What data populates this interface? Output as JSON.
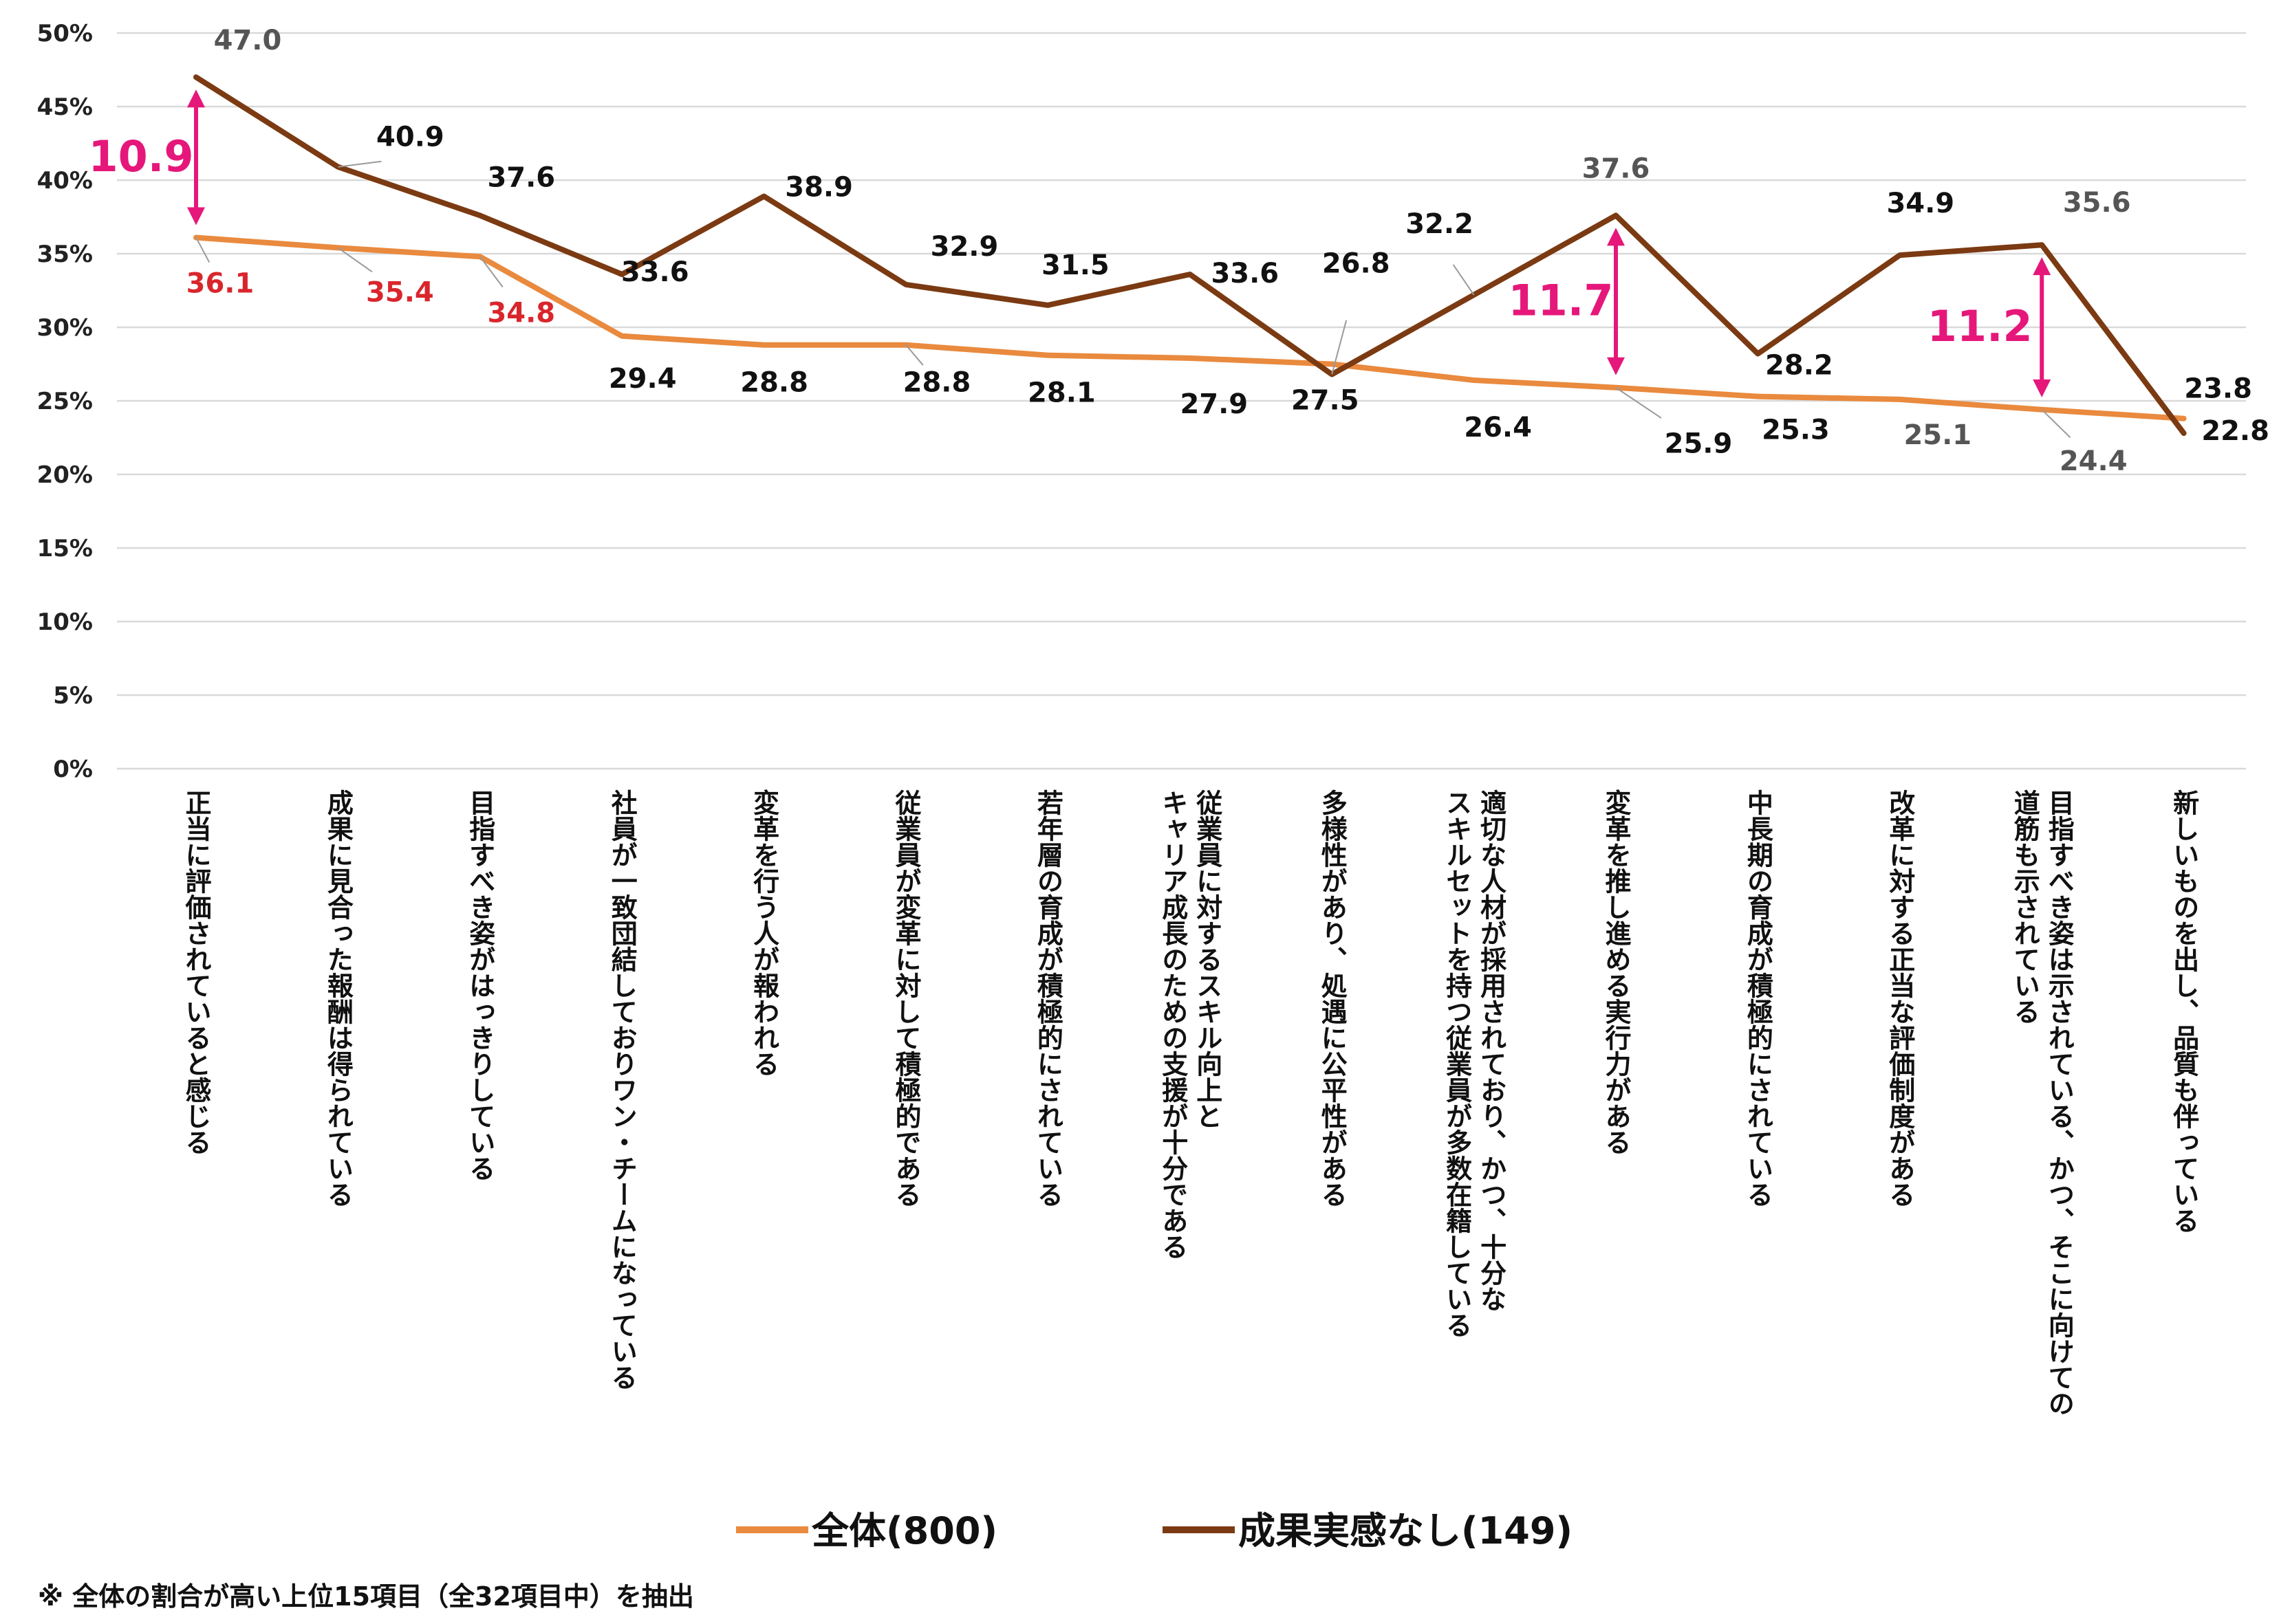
{
  "chart_data": {
    "type": "line",
    "categories": [
      "正当に評価されていると感じる",
      "成果に見合った報酬は得られている",
      "目指すべき姿がはっきりしている",
      "社員が一致団結しておりワン・チームになっている",
      "変革を行う人が報われる",
      "従業員が変革に対して積極的である",
      "若年層の育成が積極的にされている",
      [
        "従業員に対するスキル向上と",
        "キャリア成長のための支援が十分である"
      ],
      "多様性があり、処遇に公平性がある",
      [
        "適切な人材が採用されており、かつ、十分な",
        "スキルセットを持つ従業員が多数在籍している"
      ],
      "変革を推し進める実行力がある",
      "中長期の育成が積極的にされている",
      "改革に対する正当な評価制度がある",
      [
        "目指すべき姿は示されている、かつ、そこに向けての",
        "道筋も示されている"
      ],
      "新しいものを出し、品質も伴っている"
    ],
    "series": [
      {
        "name": "全体(800)",
        "color": "#E98A3E",
        "values": [
          36.1,
          35.4,
          34.8,
          29.4,
          28.8,
          28.8,
          28.1,
          27.9,
          27.5,
          26.4,
          25.9,
          25.3,
          25.1,
          24.4,
          23.8
        ],
        "labels": [
          "36.1",
          "35.4",
          "34.8",
          "29.4",
          "28.8",
          "28.8",
          "28.1",
          "27.9",
          "27.5",
          "26.4",
          "25.9",
          "25.3",
          "25.1",
          "24.4",
          "23.8"
        ]
      },
      {
        "name": "成果実感なし(149)",
        "color": "#7B3A12",
        "values": [
          47.0,
          40.9,
          37.6,
          33.6,
          38.9,
          32.9,
          31.5,
          33.6,
          26.8,
          32.2,
          37.6,
          28.2,
          34.9,
          35.6,
          22.8
        ],
        "labels": [
          "47.0",
          "40.9",
          "37.6",
          "33.6",
          "38.9",
          "32.9",
          "31.5",
          "33.6",
          "26.8",
          "32.2",
          "37.6",
          "28.2",
          "34.9",
          "35.6",
          "22.8"
        ]
      }
    ],
    "yticks": [
      "0%",
      "5%",
      "10%",
      "15%",
      "20%",
      "25%",
      "30%",
      "35%",
      "40%",
      "45%",
      "50%"
    ],
    "ylim": [
      0,
      50
    ],
    "grid": true,
    "legend_position": "bottom",
    "gap_annotations": [
      {
        "index": 0,
        "label": "10.9"
      },
      {
        "index": 10,
        "label": "11.7"
      },
      {
        "index": 13,
        "label": "11.2"
      }
    ],
    "colors": {
      "series1_label": "#D9262C",
      "series2_label": "#111111",
      "highlight": "#E6177A",
      "gray_label": "#555555",
      "grid": "#D9D9D9"
    }
  },
  "footnote": "※ 全体の割合が高い上位15項目（全32項目中）を抽出"
}
